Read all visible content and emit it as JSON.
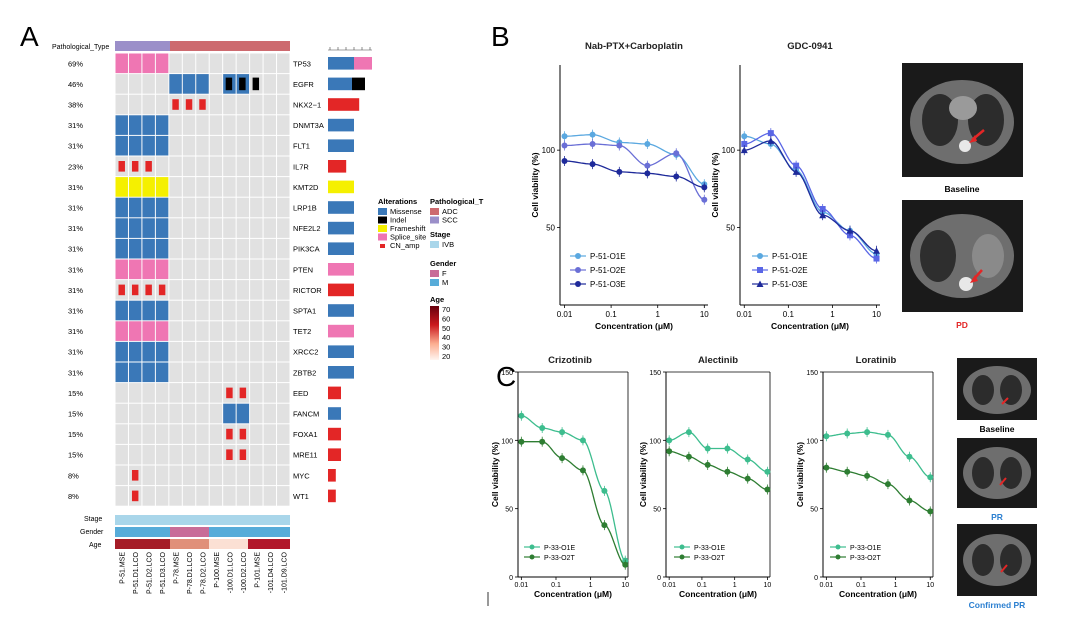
{
  "panels": {
    "a": "A",
    "b": "B",
    "c": "C"
  },
  "oncoprint": {
    "pathological_type_label": "Pathological_Type",
    "samples": [
      "P-51.MSE",
      "P-51.D1.LCO",
      "P-51.D2.LCO",
      "P-51.D3.LCO",
      "P-78.MSE",
      "P-78.D1.LCO",
      "P-78.D2.LCO",
      "P-100.MSE",
      "P-100.D1.LCO",
      "P-100.D2.LCO",
      "P-101.MSE",
      "P-101.D4.LCO",
      "P-101.D9.LCO"
    ],
    "sample_labels": [
      "P-51.MSE",
      "P-51.D1.LCO",
      "P-51.D2.LCO",
      "P-51.D3.LCO",
      "P-78.MSE",
      "P-78.D1.LCO",
      "P-78.D2.LCO",
      "P-100.MSE",
      "-100.D1.LCO",
      "-100.D2.LCO",
      "P-101.MSE",
      "-101.D4.LCO",
      "-101.D9.LCO"
    ],
    "genes": [
      {
        "pct": "69%",
        "name": "TP53"
      },
      {
        "pct": "46%",
        "name": "EGFR"
      },
      {
        "pct": "38%",
        "name": "NKX2−1"
      },
      {
        "pct": "31%",
        "name": "DNMT3A"
      },
      {
        "pct": "31%",
        "name": "FLT1"
      },
      {
        "pct": "23%",
        "name": "IL7R"
      },
      {
        "pct": "31%",
        "name": "KMT2D"
      },
      {
        "pct": "31%",
        "name": "LRP1B"
      },
      {
        "pct": "31%",
        "name": "NFE2L2"
      },
      {
        "pct": "31%",
        "name": "PIK3CA"
      },
      {
        "pct": "31%",
        "name": "PTEN"
      },
      {
        "pct": "31%",
        "name": "RICTOR"
      },
      {
        "pct": "31%",
        "name": "SPTA1"
      },
      {
        "pct": "31%",
        "name": "TET2"
      },
      {
        "pct": "31%",
        "name": "XRCC2"
      },
      {
        "pct": "31%",
        "name": "ZBTB2"
      },
      {
        "pct": "15%",
        "name": "EED"
      },
      {
        "pct": "15%",
        "name": "FANCM"
      },
      {
        "pct": "15%",
        "name": "FOXA1"
      },
      {
        "pct": "15%",
        "name": "MRE11"
      },
      {
        "pct": "8%",
        "name": "MYC"
      },
      {
        "pct": "8%",
        "name": "WT1"
      }
    ],
    "track_labels": {
      "stage": "Stage",
      "gender": "Gender",
      "age": "Age"
    },
    "legend": {
      "alterations_title": "Alterations",
      "alterations": [
        {
          "name": "Missense",
          "color": "#3a78b8"
        },
        {
          "name": "Indel",
          "color": "#000000"
        },
        {
          "name": "Frameshift",
          "color": "#f5f000"
        },
        {
          "name": "Splice_site",
          "color": "#ef76b3"
        },
        {
          "name": "CN_amp",
          "color": "#e32626"
        }
      ],
      "path_title": "Pathological_T",
      "path": [
        {
          "name": "ADC",
          "color": "#cd6a6f"
        },
        {
          "name": "SCC",
          "color": "#9b8fc9"
        }
      ],
      "stage_title": "Stage",
      "stage": [
        {
          "name": "IVB",
          "color": "#a9d6ea"
        }
      ],
      "gender_title": "Gender",
      "gender": [
        {
          "name": "F",
          "color": "#c86c98"
        },
        {
          "name": "M",
          "color": "#57acd9"
        }
      ],
      "age_title": "Age",
      "age_ticks": [
        "70",
        "60",
        "50",
        "40",
        "30",
        "20"
      ]
    }
  },
  "chart_data": [
    {
      "type": "scatter",
      "title": "Nab-PTX+Carboplatin",
      "xlabel": "Concentration (μM)",
      "ylabel": "Cell viability (%)",
      "xscale": "log",
      "xlim": [
        0.008,
        12
      ],
      "ylim": [
        0,
        155
      ],
      "xticks": [
        "0.01",
        "0.1",
        "1",
        "10"
      ],
      "yticks": [
        "50",
        "100"
      ],
      "x": [
        0.01,
        0.04,
        0.15,
        0.6,
        2.5,
        10
      ],
      "series": [
        {
          "name": "P-51-O1E",
          "color": "#5aa8e0",
          "marker": "circle",
          "values": [
            109,
            110,
            105,
            104,
            97,
            78
          ]
        },
        {
          "name": "P-51-O2E",
          "color": "#6a6fd6",
          "marker": "circle",
          "values": [
            103,
            104,
            103,
            90,
            98,
            68
          ]
        },
        {
          "name": "P-51-O3E",
          "color": "#1e2a9a",
          "marker": "circle",
          "values": [
            93,
            91,
            86,
            85,
            83,
            76
          ]
        }
      ]
    },
    {
      "type": "scatter",
      "title": "GDC-0941",
      "xlabel": "Concentration (μM)",
      "ylabel": "Cell viability (%)",
      "xscale": "log",
      "xlim": [
        0.008,
        12
      ],
      "ylim": [
        0,
        155
      ],
      "xticks": [
        "0.01",
        "0.1",
        "1",
        "10"
      ],
      "yticks": [
        "50",
        "100"
      ],
      "x": [
        0.01,
        0.04,
        0.15,
        0.6,
        2.5,
        10
      ],
      "series": [
        {
          "name": "P-51-O1E",
          "color": "#5aa8e0",
          "marker": "circle",
          "values": [
            109,
            104,
            87,
            60,
            48,
            33
          ]
        },
        {
          "name": "P-51-O2E",
          "color": "#5a66e6",
          "marker": "square",
          "values": [
            104,
            111,
            90,
            62,
            45,
            30
          ]
        },
        {
          "name": "P-51-O3E",
          "color": "#1e2a9a",
          "marker": "triangle",
          "values": [
            100,
            106,
            86,
            58,
            48,
            35
          ]
        }
      ]
    },
    {
      "type": "scatter",
      "title": "Crizotinib",
      "xlabel": "Concentration (μM)",
      "ylabel": "Cell viability (%)",
      "xscale": "log",
      "xlim": [
        0.008,
        12
      ],
      "ylim": [
        0,
        150
      ],
      "xticks": [
        "0.01",
        "0.1",
        "1",
        "10"
      ],
      "yticks": [
        "0",
        "50",
        "100",
        "150"
      ],
      "x": [
        0.01,
        0.04,
        0.15,
        0.6,
        2.5,
        10
      ],
      "series": [
        {
          "name": "P-33-O1E",
          "color": "#3dbd8e",
          "values": [
            118,
            109,
            106,
            100,
            63,
            12
          ]
        },
        {
          "name": "P-33-O2T",
          "color": "#2e7d32",
          "values": [
            99,
            99,
            87,
            78,
            38,
            9
          ]
        }
      ]
    },
    {
      "type": "scatter",
      "title": "Alectinib",
      "xlabel": "Concentration (μM)",
      "ylabel": "Cell viability (%)",
      "xscale": "log",
      "xlim": [
        0.008,
        12
      ],
      "ylim": [
        0,
        150
      ],
      "xticks": [
        "0.01",
        "0.1",
        "1",
        "10"
      ],
      "yticks": [
        "0",
        "50",
        "100",
        "150"
      ],
      "x": [
        0.01,
        0.04,
        0.15,
        0.6,
        2.5,
        10
      ],
      "series": [
        {
          "name": "P-33-O1E",
          "color": "#3dbd8e",
          "values": [
            100,
            106,
            94,
            94,
            86,
            77
          ]
        },
        {
          "name": "P-33-O2T",
          "color": "#2e7d32",
          "values": [
            92,
            88,
            82,
            77,
            72,
            64
          ]
        }
      ]
    },
    {
      "type": "scatter",
      "title": "Loratinib",
      "xlabel": "Concentration (μM)",
      "ylabel": "Cell viability (%)",
      "xscale": "log",
      "xlim": [
        0.008,
        12
      ],
      "ylim": [
        0,
        150
      ],
      "xticks": [
        "0.01",
        "0.1",
        "1",
        "10"
      ],
      "yticks": [
        "0",
        "50",
        "100",
        "150"
      ],
      "x": [
        0.01,
        0.04,
        0.15,
        0.6,
        2.5,
        10
      ],
      "series": [
        {
          "name": "P-33-O1E",
          "color": "#3dbd8e",
          "values": [
            103,
            105,
            106,
            104,
            88,
            73
          ]
        },
        {
          "name": "P-33-O2T",
          "color": "#2e7d32",
          "values": [
            80,
            77,
            74,
            68,
            56,
            48
          ]
        }
      ]
    }
  ],
  "ct_labels": {
    "b_baseline": "Baseline",
    "b_pd": "PD",
    "c_baseline": "Baseline",
    "c_pr": "PR",
    "c_confirmed": "Confirmed PR"
  },
  "colors": {
    "pd": "#e32626",
    "pr": "#2b7fd0"
  }
}
